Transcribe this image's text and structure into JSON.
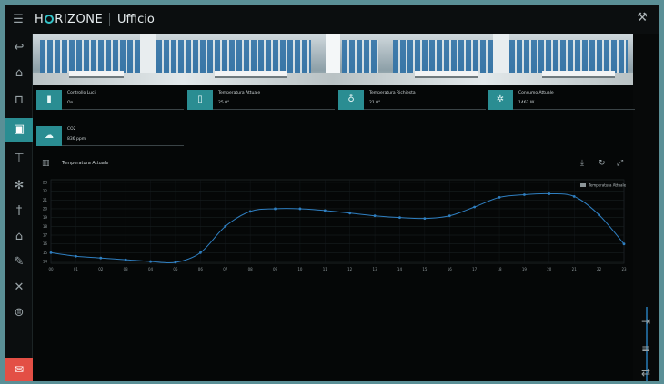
{
  "header": {
    "menu_icon": "hamburger-icon",
    "logo_prefix": "H",
    "logo_suffix": "RIZONE",
    "title": "Ufficio",
    "settings_icon": "wrench-icon"
  },
  "sidebar": {
    "items": [
      {
        "icon": "back-icon",
        "glyph": "↩"
      },
      {
        "icon": "home-icon",
        "glyph": "⌂"
      },
      {
        "icon": "sofa-icon",
        "glyph": "⊓"
      },
      {
        "icon": "office-icon",
        "glyph": "▣",
        "active": true
      },
      {
        "icon": "tools-icon",
        "glyph": "⊤"
      },
      {
        "icon": "fan-icon",
        "glyph": "✻"
      },
      {
        "icon": "pin-icon",
        "glyph": "†"
      },
      {
        "icon": "house-outline-icon",
        "glyph": "⌂"
      },
      {
        "icon": "pencil-icon",
        "glyph": "✎"
      },
      {
        "icon": "crossed-tools-icon",
        "glyph": "✕"
      },
      {
        "icon": "gamepad-icon",
        "glyph": "⊜"
      }
    ],
    "bottom_icon": "chat-icon"
  },
  "cards": [
    {
      "label": "Controllo Luci",
      "value": "On",
      "icon": "light-icon"
    },
    {
      "label": "Temperatura Attuale",
      "value": "25.0°",
      "icon": "thermometer-icon"
    },
    {
      "label": "Temperatura Richiesta",
      "value": "21.0°",
      "icon": "thermometer-target-icon"
    },
    {
      "label": "Consumo Attuale",
      "value": "1462 W",
      "icon": "gear-icon"
    },
    {
      "label": "CO2",
      "value": "836 ppm",
      "icon": "co2-cloud-icon"
    }
  ],
  "chart_header": {
    "title": "Temperatura Attuale",
    "chart_icon": "bar-chart-icon",
    "download_icon": "download-icon",
    "refresh_icon": "refresh-icon",
    "expand_icon": "expand-icon"
  },
  "right_rail": {
    "icons": [
      "exit-icon",
      "list-icon",
      "swap-icon"
    ]
  },
  "colors": {
    "accent": "#2a8d92",
    "line": "#2f7fc1",
    "alert": "#e34f45"
  },
  "chart_data": {
    "type": "line",
    "title": "",
    "xlabel": "",
    "ylabel": "",
    "legend": "top-right",
    "grid": true,
    "x": [
      "00",
      "01",
      "02",
      "03",
      "04",
      "05",
      "06",
      "07",
      "08",
      "09",
      "10",
      "11",
      "12",
      "13",
      "14",
      "15",
      "16",
      "17",
      "18",
      "19",
      "20",
      "21",
      "22",
      "23"
    ],
    "yticks": [
      23,
      22,
      21,
      20,
      19,
      18,
      17,
      16,
      15,
      14
    ],
    "ylim": [
      13.8,
      23.3
    ],
    "series": [
      {
        "name": "Temperatura Attuale",
        "values": [
          15.0,
          14.6,
          14.4,
          14.2,
          14.0,
          13.9,
          15.0,
          18.0,
          19.7,
          20.0,
          20.0,
          19.8,
          19.5,
          19.2,
          19.0,
          18.9,
          19.2,
          20.2,
          21.3,
          21.6,
          21.7,
          21.4,
          19.3,
          16.0
        ]
      }
    ]
  }
}
